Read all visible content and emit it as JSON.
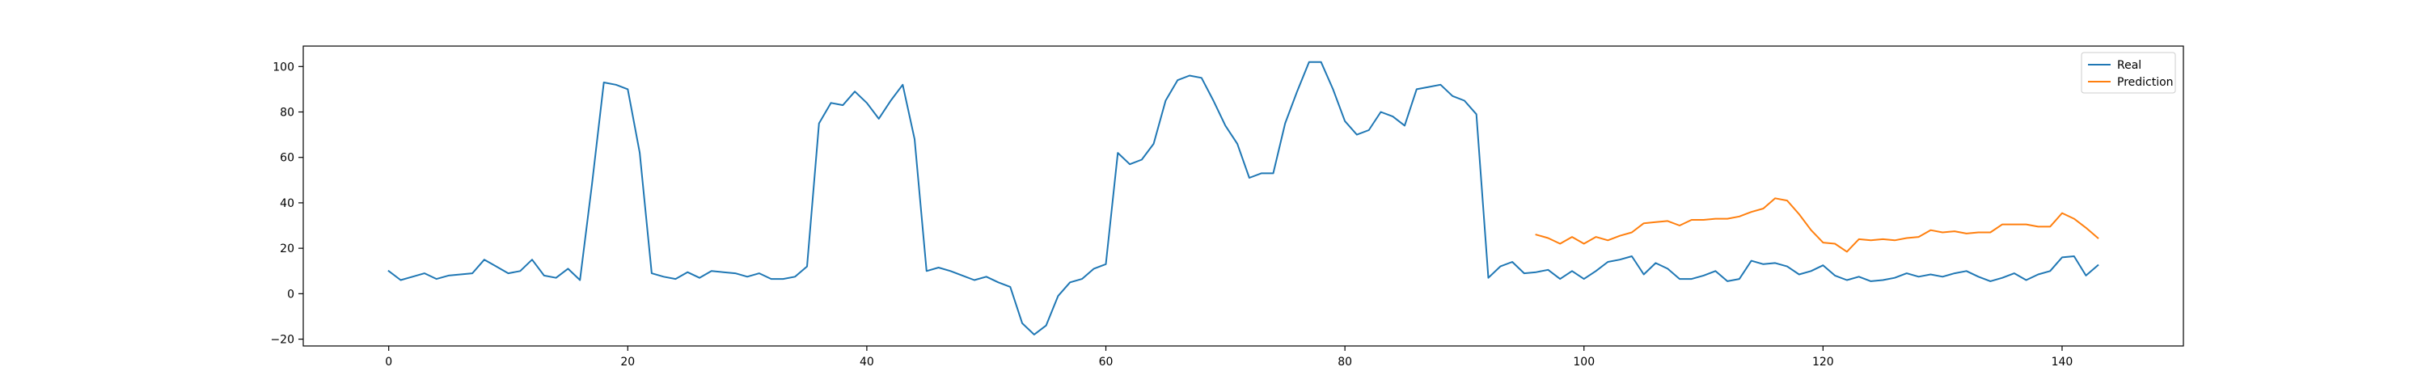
{
  "chart_data": {
    "type": "line",
    "title": "",
    "xlabel": "",
    "ylabel": "",
    "xlim": [
      -7.15,
      150.15
    ],
    "ylim": [
      -23,
      109
    ],
    "xticks": [
      0,
      20,
      40,
      60,
      80,
      100,
      120,
      140
    ],
    "yticks": [
      -20,
      0,
      20,
      40,
      60,
      80,
      100
    ],
    "grid": false,
    "legend_position": "top-right",
    "series": [
      {
        "name": "Real",
        "color": "#1f77b4",
        "x_start": 0,
        "values": [
          10,
          6,
          7.5,
          9,
          6.5,
          8,
          8.5,
          9,
          15,
          12,
          9,
          10,
          15,
          8,
          7,
          11,
          6,
          48,
          93,
          92,
          90,
          62,
          9,
          7.5,
          6.5,
          9.5,
          7,
          10,
          9.5,
          9,
          7.5,
          9,
          6.5,
          6.5,
          7.5,
          12,
          75,
          84,
          83,
          89,
          84,
          77,
          85,
          92,
          68,
          10,
          11.5,
          10,
          8,
          6,
          7.5,
          5,
          3,
          -13,
          -18,
          -14,
          -1,
          5,
          6.5,
          11,
          13,
          62,
          57,
          59,
          66,
          85,
          94,
          96,
          95,
          85,
          74,
          66,
          51,
          53,
          53,
          75,
          89,
          102,
          102,
          90,
          76,
          70,
          72,
          80,
          78,
          74,
          90,
          91,
          92,
          87,
          85,
          79,
          7,
          12,
          14,
          9,
          9.5,
          10.5,
          6.5,
          10,
          6.5,
          10,
          14,
          15,
          16.5,
          8.5,
          13.5,
          11,
          6.5,
          6.5,
          8,
          10,
          5.5,
          6.5,
          14.5,
          13,
          13.5,
          12,
          8.5,
          10,
          12.5,
          8,
          6,
          7.5,
          5.5,
          6,
          7,
          9,
          7.5,
          8.5,
          7.5,
          9,
          10,
          7.5,
          5.5,
          7,
          9,
          6,
          8.5,
          10,
          16,
          16.5,
          8,
          12.5
        ]
      },
      {
        "name": "Prediction",
        "color": "#ff7f0e",
        "x_start": 96,
        "values": [
          26,
          24.5,
          22,
          25,
          22,
          25,
          23.5,
          25.5,
          27,
          31,
          31.5,
          32,
          30,
          32.5,
          32.5,
          33,
          33,
          34,
          36,
          37.5,
          42,
          41,
          35,
          28,
          22.5,
          22,
          18.5,
          24,
          23.5,
          24,
          23.5,
          24.5,
          25,
          28,
          27,
          27.5,
          26.5,
          27,
          27,
          30.5,
          30.5,
          30.5,
          29.5,
          29.5,
          35.5,
          33,
          29,
          24.5
        ]
      }
    ]
  }
}
